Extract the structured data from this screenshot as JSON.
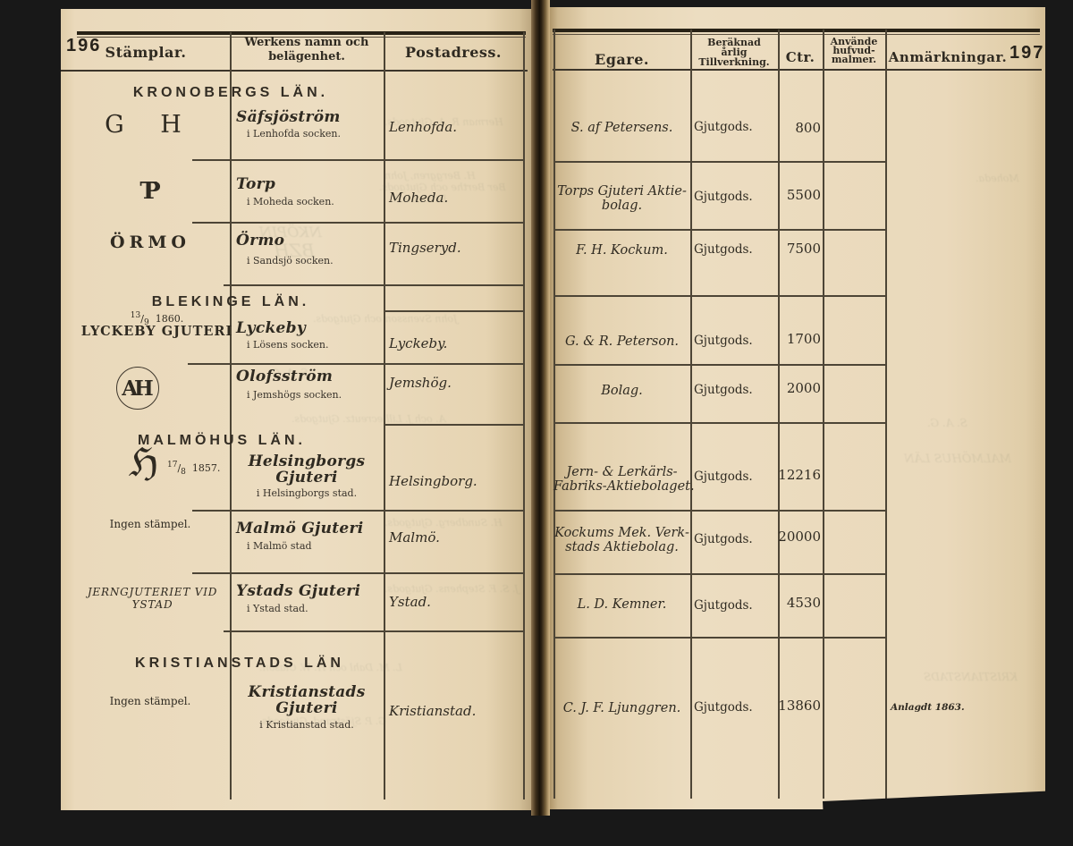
{
  "document": {
    "left_page_number": "196",
    "right_page_number": "197",
    "headers_left": {
      "stamplar": "Stämplar.",
      "werkens_line1": "Werkens namn och",
      "werkens_line2": "belägenhet.",
      "postadress": "Postadress."
    },
    "headers_right": {
      "egare": "Egare.",
      "tillverkning_line1": "Beräknad",
      "tillverkning_line2": "årlig",
      "tillverkning_line3": "Tillverkning.",
      "ctr": "Ctr.",
      "malmer_line1": "Använde",
      "malmer_line2": "hufvud-",
      "malmer_line3": "malmer.",
      "anmarkningar": "Anmärkningar."
    },
    "sections": [
      "KRONOBERGS LÄN.",
      "BLEKINGE LÄN.",
      "MALMÖHUS LÄN.",
      "KRISTIANSTADS LÄN"
    ],
    "rows": [
      {
        "stamp": {
          "text": "G H"
        },
        "name_lines": [
          "Säfsjöström"
        ],
        "location": "i Lenhofda socken.",
        "postal": "Lenhofda.",
        "owner_lines": [
          "S. af Petersens."
        ],
        "production": "Gjutgods.",
        "ctr": "800"
      },
      {
        "stamp": {
          "monogram": "TP"
        },
        "name_lines": [
          "Torp"
        ],
        "location": "i Moheda socken.",
        "postal": "Moheda.",
        "owner_lines": [
          "Torps Gjuteri Aktie-",
          "bolag."
        ],
        "production": "Gjutgods.",
        "ctr": "5500"
      },
      {
        "stamp": {
          "text": "ÖRMO"
        },
        "name_lines": [
          "Örmo"
        ],
        "location": "i Sandsjö socken.",
        "postal": "Tingseryd.",
        "owner_lines": [
          "F. H. Kockum."
        ],
        "production": "Gjutgods.",
        "ctr": "7500"
      },
      {
        "stamp": {
          "date_sup": "13",
          "date_slash": "/",
          "date_sub": "9",
          "date_year": "1860.",
          "text": "LYCKEBY GJUTERI"
        },
        "name_lines": [
          "Lyckeby"
        ],
        "location": "i Lösens socken.",
        "postal": "Lyckeby.",
        "owner_lines": [
          "G. & R. Peterson."
        ],
        "production": "Gjutgods.",
        "ctr": "1700"
      },
      {
        "stamp": {
          "circle_monogram": "AH"
        },
        "name_lines": [
          "Olofsström"
        ],
        "location": "i Jemshögs socken.",
        "postal": "Jemshög.",
        "owner_lines": [
          "Bolag."
        ],
        "production": "Gjutgods.",
        "ctr": "2000"
      },
      {
        "stamp": {
          "fraktur_letter": "ℌ",
          "date_sup": "17",
          "date_slash": "/",
          "date_sub": "8",
          "date_year": "1857."
        },
        "name_lines": [
          "Helsingborgs",
          "Gjuteri"
        ],
        "location": "i Helsingborgs stad.",
        "postal": "Helsingborg.",
        "owner_lines": [
          "Jern- & Lerkärls-",
          "Fabriks-Aktiebolaget."
        ],
        "production": "Gjutgods.",
        "ctr": "12216"
      },
      {
        "stamp": {
          "text": "Ingen stämpel."
        },
        "name_lines": [
          "Malmö Gjuteri"
        ],
        "location": "i Malmö stad",
        "postal": "Malmö.",
        "owner_lines": [
          "Kockums Mek. Verk-",
          "stads Aktiebolag."
        ],
        "production": "Gjutgods.",
        "ctr": "20000"
      },
      {
        "stamp": {
          "lines": [
            "JERNGJUTERIET VID",
            "YSTAD"
          ]
        },
        "name_lines": [
          "Ystads Gjuteri"
        ],
        "location": "i Ystad stad.",
        "postal": "Ystad.",
        "owner_lines": [
          "L. D. Kemner."
        ],
        "production": "Gjutgods.",
        "ctr": "4530"
      },
      {
        "stamp": {
          "text": "Ingen stämpel."
        },
        "name_lines": [
          "Kristianstads",
          "Gjuteri"
        ],
        "location": "i Kristianstad stad.",
        "postal": "Kristianstad.",
        "owner_lines": [
          "C. J. F. Ljunggren."
        ],
        "production": "Gjutgods.",
        "ctr": "13860",
        "remark": "Anlagdt 1863."
      }
    ],
    "bleed_through_ghosts": [
      "Herman R. A.  Gjutgods.",
      "H. Berggren, John",
      "Ber Berthe och Gjutgods.",
      "Bredablick.",
      "NKÖPIN",
      "BZH",
      "John Svensson och Gjutgods.",
      "S. A. G.",
      "A. och J. Lilliecreutz. Gjutgods.",
      "H. Sundberg. Gjutgods.",
      "J. S. F. Stephens. Gjutgods.",
      "L. M. Dahl och H. W. Clason.",
      "G. P. Sjöstrand. Gjutgods.",
      "Moheda.",
      "S. A. G.",
      "MALMÖHUS LÄN",
      "KRISTIANSTADS"
    ],
    "colors": {
      "paper": "#ecddc1",
      "ink": "#2f2a21",
      "surround": "#181818",
      "rule": "#4d4536"
    }
  }
}
